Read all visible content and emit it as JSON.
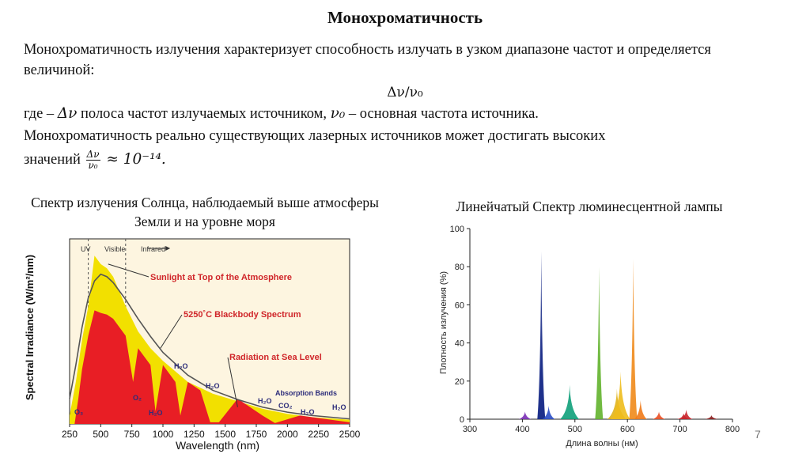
{
  "title": "Монохроматичность",
  "para1": "Монохроматичность излучения характеризует способность излучать в узком диапазоне частот и определяется величиной:",
  "formula_main": "Δν/ν₀",
  "line_where_prefix": "где – ",
  "line_where_dnu": "Δν",
  "line_where_mid": " полоса частот излучаемых источником, ",
  "line_where_nu0": "ν₀",
  "line_where_suffix": " – основная частота источника.",
  "para3": "Монохроматичность реально существующих лазерных источников может достигать высоких",
  "para4_prefix": "значений ",
  "frac_num": "Δν",
  "frac_den": "ν₀",
  "para4_suffix": " ≈ 10⁻¹⁴.",
  "left_caption": "Спектр излучения Солнца, наблюдаемый выше атмосферы Земли и на уровне моря",
  "right_caption": "Линейчатый Спектр люминесцентной лампы",
  "page_number": "7",
  "chart_data": [
    {
      "type": "area",
      "title": "",
      "xlabel": "Wavelength (nm)",
      "ylabel": "Spectral Irradiance (W/m²/nm)",
      "xlim": [
        250,
        2500
      ],
      "x_ticks": [
        "250",
        "500",
        "750",
        "1000",
        "1250",
        "1500",
        "1750",
        "2000",
        "2250",
        "2500"
      ],
      "band_labels": [
        "UV",
        "Visible",
        "Infrared"
      ],
      "annotations": [
        "Sunlight at Top of the Atmosphere",
        "5250˚C Blackbody Spectrum",
        "Radiation at Sea Level",
        "Absorption Bands",
        "H₂O",
        "H₂O",
        "H₂O",
        "H₂O",
        "H₂O",
        "H₂O",
        "O₂",
        "O₃",
        "CO₂"
      ],
      "series": [
        {
          "name": "Sunlight at Top of the Atmosphere",
          "color": "#f2e000",
          "x": [
            250,
            300,
            350,
            400,
            450,
            500,
            550,
            600,
            700,
            800,
            900,
            1000,
            1200,
            1400,
            1600,
            1800,
            2000,
            2200,
            2500
          ],
          "y": [
            0.1,
            0.5,
            1.0,
            1.4,
            2.0,
            1.9,
            1.85,
            1.75,
            1.4,
            1.1,
            0.9,
            0.75,
            0.5,
            0.36,
            0.27,
            0.18,
            0.12,
            0.08,
            0.05
          ]
        },
        {
          "name": "5250˚C Blackbody Spectrum",
          "color": "#555555",
          "x": [
            250,
            300,
            350,
            400,
            450,
            500,
            550,
            600,
            700,
            800,
            900,
            1000,
            1200,
            1400,
            1600,
            1800,
            2000,
            2200,
            2500
          ],
          "y": [
            0.3,
            0.7,
            1.15,
            1.5,
            1.7,
            1.78,
            1.75,
            1.68,
            1.48,
            1.25,
            1.04,
            0.85,
            0.58,
            0.4,
            0.29,
            0.2,
            0.14,
            0.1,
            0.06
          ]
        },
        {
          "name": "Radiation at Sea Level",
          "color": "#e81e25",
          "x": [
            290,
            320,
            350,
            400,
            450,
            500,
            550,
            600,
            700,
            760,
            800,
            900,
            940,
            1000,
            1100,
            1140,
            1200,
            1300,
            1380,
            1450,
            1600,
            1800,
            1900,
            2100,
            2300,
            2500
          ],
          "y": [
            0,
            0.3,
            0.65,
            1.05,
            1.35,
            1.32,
            1.3,
            1.25,
            1.05,
            0.5,
            0.9,
            0.7,
            0.15,
            0.7,
            0.5,
            0.1,
            0.5,
            0.4,
            0.02,
            0.02,
            0.3,
            0.1,
            0.01,
            0.1,
            0.06,
            0.02
          ]
        }
      ]
    },
    {
      "type": "line",
      "title": "",
      "xlabel": "Длина волны (нм)",
      "ylabel": "Плотность излучения (%)",
      "xlim": [
        300,
        800
      ],
      "ylim": [
        0,
        100
      ],
      "x_ticks": [
        "300",
        "400",
        "500",
        "600",
        "700",
        "800"
      ],
      "y_ticks": [
        "0",
        "20",
        "40",
        "60",
        "80",
        "100"
      ],
      "series": [
        {
          "name": "",
          "points": [
            {
              "x": 405,
              "y": 4,
              "color": "#7a2fb5"
            },
            {
              "x": 436,
              "y": 88,
              "color": "#1c2f8a"
            },
            {
              "x": 436,
              "y": 50,
              "color": "#1c2f8a"
            },
            {
              "x": 450,
              "y": 7,
              "color": "#2a4cc4"
            },
            {
              "x": 490,
              "y": 18,
              "color": "#10a07a"
            },
            {
              "x": 546,
              "y": 80,
              "color": "#62b32c"
            },
            {
              "x": 580,
              "y": 16,
              "color": "#e0b31a"
            },
            {
              "x": 587,
              "y": 25,
              "color": "#eebd1c"
            },
            {
              "x": 611,
              "y": 84,
              "color": "#f08a1a"
            },
            {
              "x": 625,
              "y": 10,
              "color": "#f07a18"
            },
            {
              "x": 660,
              "y": 4,
              "color": "#e94e22"
            },
            {
              "x": 707,
              "y": 3,
              "color": "#c9252b"
            },
            {
              "x": 712,
              "y": 5,
              "color": "#c9252b"
            },
            {
              "x": 760,
              "y": 2,
              "color": "#8a1c1c"
            }
          ]
        }
      ]
    }
  ]
}
